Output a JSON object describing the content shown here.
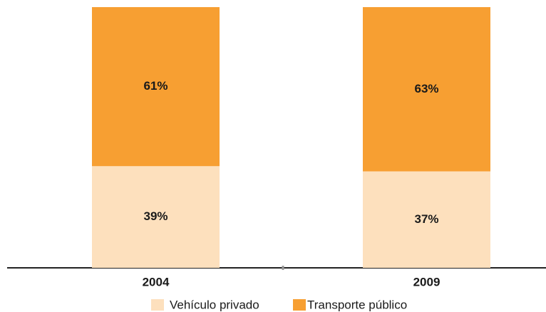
{
  "chart_data": {
    "type": "bar",
    "stacked": true,
    "categories": [
      "2004",
      "2009"
    ],
    "series": [
      {
        "name": "Vehículo privado",
        "color": "#fde0bd",
        "values": [
          39,
          37
        ],
        "value_labels": [
          "39%",
          "37%"
        ]
      },
      {
        "name": "Transporte público",
        "color": "#f79f32",
        "values": [
          61,
          63
        ],
        "value_labels": [
          "61%",
          "63%"
        ]
      }
    ],
    "ylim": [
      0,
      100
    ]
  }
}
